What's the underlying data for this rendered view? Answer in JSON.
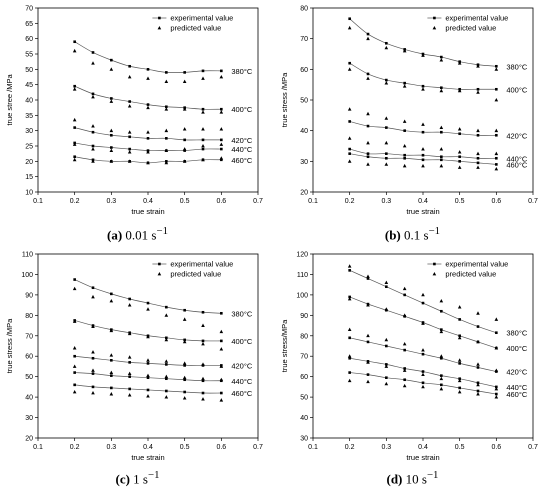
{
  "chart_data": [
    {
      "id": "a",
      "type": "scatter",
      "caption_label": "(a)",
      "caption_rate": "0.01 s",
      "caption_exp": "−1",
      "xlabel": "true strain",
      "ylabel": "true stree /MPa",
      "xlim": [
        0.1,
        0.7
      ],
      "ylim": [
        10,
        70
      ],
      "xticks": [
        "0.1",
        "0.2",
        "0.3",
        "0.4",
        "0.5",
        "0.6",
        "0.7"
      ],
      "yticks": [
        "10",
        "15",
        "20",
        "25",
        "30",
        "35",
        "40",
        "45",
        "50",
        "55",
        "60",
        "65",
        "70"
      ],
      "legend": {
        "experimental": "experimental value",
        "predicted": "predicted value"
      },
      "x": [
        0.2,
        0.25,
        0.3,
        0.35,
        0.4,
        0.45,
        0.5,
        0.55,
        0.6
      ],
      "series": [
        {
          "temp": "380°C",
          "experimental": [
            59,
            55.5,
            53,
            51,
            50,
            49,
            49,
            49.5,
            49.5
          ],
          "predicted": [
            56,
            52,
            50,
            47.5,
            47,
            46,
            46,
            47,
            47.5
          ]
        },
        {
          "temp": "400°C",
          "experimental": [
            44.5,
            42,
            40.5,
            39.5,
            38.5,
            37.8,
            37.5,
            37,
            37
          ],
          "predicted": [
            43.5,
            41,
            39.5,
            38,
            37.5,
            37,
            37,
            36,
            36
          ]
        },
        {
          "temp": "420°C",
          "experimental": [
            31,
            29.5,
            28.5,
            28,
            27.5,
            27.5,
            27,
            27,
            27
          ],
          "predicted": [
            33.5,
            31.5,
            30,
            29.5,
            29.5,
            30,
            30.5,
            30.5,
            30.5
          ]
        },
        {
          "temp": "440°C",
          "experimental": [
            26,
            25,
            24.5,
            24,
            23.5,
            23.5,
            23.5,
            24,
            24
          ],
          "predicted": [
            25.5,
            24,
            23.5,
            23,
            23,
            23.5,
            24,
            25,
            25.5
          ]
        },
        {
          "temp": "460°C",
          "experimental": [
            21.5,
            20.5,
            20,
            20,
            19.5,
            20,
            20,
            20.5,
            20.5
          ],
          "predicted": [
            20.5,
            20,
            20,
            20,
            19.5,
            19.5,
            20,
            20.5,
            21
          ]
        }
      ]
    },
    {
      "id": "b",
      "type": "scatter",
      "caption_label": "(b)",
      "caption_rate": "0.1 s",
      "caption_exp": "−1",
      "xlabel": "true strain",
      "ylabel": "true stress /MPa",
      "xlim": [
        0.1,
        0.7
      ],
      "ylim": [
        20,
        80
      ],
      "xticks": [
        "0.1",
        "0.2",
        "0.3",
        "0.4",
        "0.5",
        "0.6",
        "0.7"
      ],
      "yticks": [
        "20",
        "30",
        "40",
        "50",
        "60",
        "70",
        "80"
      ],
      "legend": {
        "experimental": "experimental value",
        "predicted": "predicted value"
      },
      "x": [
        0.2,
        0.25,
        0.3,
        0.35,
        0.4,
        0.45,
        0.5,
        0.55,
        0.6
      ],
      "series": [
        {
          "temp": "380°C",
          "experimental": [
            76.5,
            71.5,
            68.5,
            66.5,
            65,
            64,
            62.5,
            61.5,
            61
          ],
          "predicted": [
            73.5,
            70,
            67,
            66,
            64.5,
            63,
            62,
            61,
            60
          ]
        },
        {
          "temp": "400°C",
          "experimental": [
            62,
            58.5,
            56.5,
            55.5,
            54.5,
            54,
            53.5,
            53.5,
            53.5
          ],
          "predicted": [
            60,
            57,
            55.5,
            54.5,
            53.5,
            53,
            53,
            52.5,
            50
          ]
        },
        {
          "temp": "420°C",
          "experimental": [
            43,
            41.5,
            41,
            40,
            39.5,
            39.5,
            39,
            38.5,
            38.5
          ],
          "predicted": [
            47,
            45.5,
            44,
            43,
            42,
            41,
            40.5,
            40,
            40
          ]
        },
        {
          "temp": "440°C",
          "experimental": [
            34,
            32.5,
            32.5,
            32,
            32,
            31.5,
            31.5,
            31,
            31
          ],
          "predicted": [
            37.5,
            36,
            36,
            35,
            34,
            34,
            33,
            32.5,
            32.5
          ]
        },
        {
          "temp": "460°C",
          "experimental": [
            32.5,
            31.5,
            31,
            31,
            30.5,
            30.5,
            30,
            29.5,
            29
          ],
          "predicted": [
            30,
            29,
            29,
            28.5,
            28.5,
            28.5,
            28,
            28,
            27.5
          ]
        }
      ]
    },
    {
      "id": "c",
      "type": "scatter",
      "caption_label": "(c)",
      "caption_rate": "1 s",
      "caption_exp": "−1",
      "xlabel": "true strain",
      "ylabel": "true stress /MPa",
      "xlim": [
        0.1,
        0.7
      ],
      "ylim": [
        20,
        110
      ],
      "xticks": [
        "0.1",
        "0.2",
        "0.3",
        "0.4",
        "0.5",
        "0.6",
        "0.7"
      ],
      "yticks": [
        "20",
        "30",
        "40",
        "50",
        "60",
        "70",
        "80",
        "90",
        "100",
        "110"
      ],
      "legend": {
        "experimental": "experimental value",
        "predicted": "predicted value"
      },
      "x": [
        0.2,
        0.25,
        0.3,
        0.35,
        0.4,
        0.45,
        0.5,
        0.55,
        0.6
      ],
      "series": [
        {
          "temp": "380°C",
          "experimental": [
            97.5,
            93.5,
            90.5,
            88,
            86,
            84,
            82.5,
            81.5,
            81
          ],
          "predicted": [
            93,
            89,
            87,
            85,
            83,
            80,
            78,
            75,
            72
          ]
        },
        {
          "temp": "400°C",
          "experimental": [
            77.5,
            75,
            73,
            71.5,
            70,
            69,
            68,
            67.5,
            67.5
          ],
          "predicted": [
            77,
            74.5,
            72.5,
            71,
            69.5,
            68,
            67,
            66,
            63.5
          ]
        },
        {
          "temp": "420°C",
          "experimental": [
            60,
            59,
            58,
            57,
            56.5,
            56,
            55.5,
            55.5,
            55.5
          ],
          "predicted": [
            64,
            62,
            60.5,
            59.5,
            58,
            57.5,
            56.5,
            56,
            55
          ]
        },
        {
          "temp": "440°C",
          "experimental": [
            52,
            51.5,
            50.5,
            50,
            49.5,
            49,
            48.5,
            48,
            48
          ],
          "predicted": [
            55,
            53,
            52,
            51.5,
            50.5,
            50,
            49.5,
            49,
            48.5
          ]
        },
        {
          "temp": "460°C",
          "experimental": [
            46,
            45,
            44.5,
            44,
            43.5,
            43,
            42.5,
            42,
            42
          ],
          "predicted": [
            42.5,
            42,
            41.5,
            41,
            40.5,
            40,
            39.5,
            39,
            38.5
          ]
        }
      ]
    },
    {
      "id": "d",
      "type": "scatter",
      "caption_label": "(d)",
      "caption_rate": "10 s",
      "caption_exp": "−1",
      "xlabel": "true strain",
      "ylabel": "true stress/MPa",
      "xlim": [
        0.1,
        0.7
      ],
      "ylim": [
        30,
        120
      ],
      "xticks": [
        "0.1",
        "0.2",
        "0.3",
        "0.4",
        "0.5",
        "0.6",
        "0.7"
      ],
      "yticks": [
        "30",
        "40",
        "50",
        "60",
        "70",
        "80",
        "90",
        "100",
        "110",
        "120"
      ],
      "legend": {
        "experimental": "experimental value",
        "predicted": "predicted value"
      },
      "x": [
        0.2,
        0.25,
        0.3,
        0.35,
        0.4,
        0.45,
        0.5,
        0.55,
        0.6
      ],
      "series": [
        {
          "temp": "380°C",
          "experimental": [
            112,
            108,
            104,
            100,
            96,
            92,
            88,
            84.5,
            81.5
          ],
          "predicted": [
            114,
            109,
            106,
            103,
            100,
            97,
            94,
            91,
            88
          ]
        },
        {
          "temp": "400°C",
          "experimental": [
            99,
            95.5,
            92.5,
            89.5,
            86.5,
            83,
            80,
            77,
            74
          ],
          "predicted": [
            98,
            95,
            93,
            90,
            86,
            82,
            79,
            77,
            74
          ]
        },
        {
          "temp": "420°C",
          "experimental": [
            79,
            77,
            75,
            73,
            71,
            69,
            66.5,
            64.5,
            62.5
          ],
          "predicted": [
            83,
            80,
            78,
            76,
            73,
            70,
            68,
            66,
            63
          ]
        },
        {
          "temp": "440°C",
          "experimental": [
            69,
            67.5,
            66,
            64,
            62.5,
            60.5,
            59,
            57,
            55
          ],
          "predicted": [
            70,
            67,
            65,
            63,
            61,
            59,
            58,
            56,
            54
          ]
        },
        {
          "temp": "460°C",
          "experimental": [
            62,
            61,
            59.5,
            58.5,
            57,
            56,
            54.5,
            53,
            51.5
          ],
          "predicted": [
            58,
            57.5,
            56.5,
            55.5,
            55,
            54,
            52.5,
            51.5,
            50
          ]
        }
      ]
    }
  ]
}
